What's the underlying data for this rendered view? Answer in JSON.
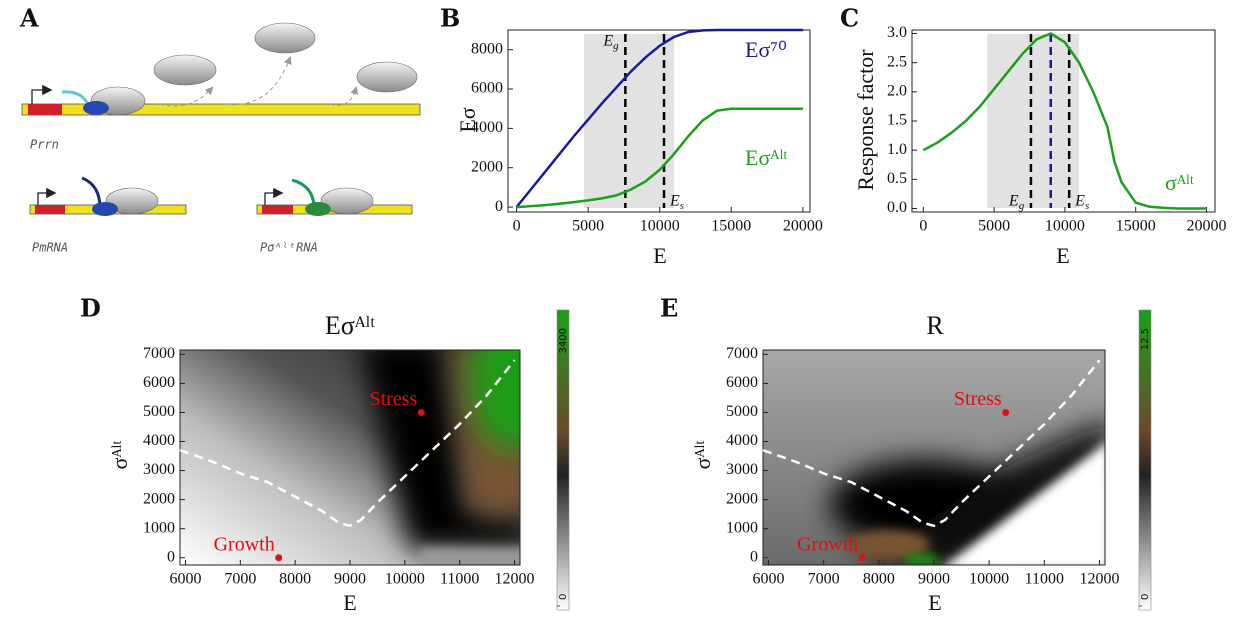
{
  "diagram": {
    "panel": "A",
    "labels": [
      "Prrn",
      "PmRNA",
      "PσᴬˡᵗRNA"
    ]
  },
  "chart_data": [
    {
      "type": "line",
      "panel": "B",
      "x_label": "E",
      "y_label": "Eσ",
      "xlim": [
        -600,
        20500
      ],
      "ylim": [
        -250,
        9000
      ],
      "xticks": [
        0,
        5000,
        10000,
        15000,
        20000
      ],
      "yticks": [
        0,
        2000,
        4000,
        6000,
        8000
      ],
      "shaded_region": [
        4700,
        11000
      ],
      "vlines": [
        {
          "x": 7600,
          "color": "#000000",
          "label": "Eg"
        },
        {
          "x": 10300,
          "color": "#000000",
          "label": "Es"
        }
      ],
      "x": [
        0,
        1000,
        2000,
        3000,
        4000,
        5000,
        6000,
        7000,
        8000,
        9000,
        10000,
        11000,
        12000,
        13000,
        14000,
        15000,
        16000,
        17000,
        18000,
        19000,
        20000
      ],
      "series": [
        {
          "name": "Eσ⁷⁰",
          "color": "#1a1a9a",
          "values": [
            0,
            900,
            1800,
            2700,
            3600,
            4450,
            5300,
            6100,
            6900,
            7600,
            8200,
            8650,
            8900,
            8980,
            9000,
            9000,
            9000,
            9000,
            9000,
            9000,
            9000
          ]
        },
        {
          "name": "Eσᴬˡᵗ",
          "color": "#1aa01a",
          "values": [
            0,
            50,
            100,
            170,
            250,
            340,
            450,
            600,
            900,
            1300,
            1900,
            2700,
            3600,
            4400,
            4900,
            5000,
            5000,
            5000,
            5000,
            5000,
            5000
          ]
        }
      ]
    },
    {
      "type": "line",
      "panel": "C",
      "x_label": "E",
      "y_label": "Response factor",
      "xlim": [
        -800,
        20600
      ],
      "ylim": [
        -0.06,
        3.06
      ],
      "xticks": [
        0,
        5000,
        10000,
        15000,
        20000
      ],
      "yticks": [
        {
          "value": 0,
          "label": "0.0"
        },
        0.5,
        {
          "value": 1,
          "label": "1.0"
        },
        1.5,
        {
          "value": 2,
          "label": "2.0"
        },
        2.5,
        {
          "value": 3,
          "label": "3.0"
        }
      ],
      "shaded_region": [
        4500,
        11000
      ],
      "vlines": [
        {
          "x": 7600,
          "color": "#000000",
          "label": "Eg"
        },
        {
          "x": 9000,
          "color": "#1a1a9a"
        },
        {
          "x": 10300,
          "color": "#000000",
          "label": "Es"
        }
      ],
      "x": [
        0,
        1000,
        2000,
        3000,
        4000,
        5000,
        6000,
        7000,
        8000,
        9000,
        10000,
        11000,
        12000,
        13000,
        13500,
        14000,
        15000,
        16000,
        17000,
        18000,
        20000
      ],
      "series": [
        {
          "name": "σᴬˡᵗ",
          "color": "#1aa01a",
          "values": [
            1.0,
            1.13,
            1.3,
            1.5,
            1.75,
            2.05,
            2.35,
            2.65,
            2.9,
            3.0,
            2.85,
            2.5,
            2.0,
            1.4,
            0.8,
            0.45,
            0.1,
            0.03,
            0.01,
            0,
            0
          ]
        }
      ]
    },
    {
      "type": "heatmap",
      "panel": "D",
      "title": "Eσᴬˡᵗ",
      "x_label": "E",
      "y_label": "σᴬˡᵗ",
      "xlim": [
        5900,
        12100
      ],
      "ylim": [
        -250,
        7150
      ],
      "xticks": [
        6000,
        7000,
        8000,
        9000,
        10000,
        11000,
        12000
      ],
      "yticks": [
        0,
        1000,
        2000,
        3000,
        4000,
        5000,
        6000,
        7000
      ],
      "points": [
        {
          "label": "Stress",
          "x": 10300,
          "y": 5000,
          "color": "#e01010"
        },
        {
          "label": "Growth",
          "x": 7700,
          "y": 0,
          "color": "#e01010"
        }
      ],
      "series": [
        {
          "color": "#ffffff",
          "x": [
            5900,
            6500,
            7000,
            7500,
            8000,
            8500,
            8800,
            9000,
            9200,
            9500,
            10000,
            10500,
            11000,
            11500,
            12000
          ],
          "values": [
            3700,
            3300,
            2900,
            2600,
            2100,
            1600,
            1200,
            1100,
            1300,
            1900,
            2800,
            3700,
            4600,
            5600,
            6800
          ]
        }
      ],
      "colorbar": {
        "lim": [
          0,
          3400
        ],
        "ticks": [
          0,
          3400
        ]
      }
    },
    {
      "type": "heatmap",
      "panel": "E",
      "title": "R",
      "x_label": "E",
      "y_label": "σᴬˡᵗ",
      "xlim": [
        5900,
        12100
      ],
      "ylim": [
        -250,
        7150
      ],
      "xticks": [
        6000,
        7000,
        8000,
        9000,
        10000,
        11000,
        12000
      ],
      "yticks": [
        0,
        1000,
        2000,
        3000,
        4000,
        5000,
        6000,
        7000
      ],
      "points": [
        {
          "label": "Stress",
          "x": 10300,
          "y": 5000,
          "color": "#e01010"
        },
        {
          "label": "Growth",
          "x": 7700,
          "y": 0,
          "color": "#e01010"
        }
      ],
      "series": [
        {
          "color": "#ffffff",
          "x": [
            5900,
            6500,
            7000,
            7500,
            8000,
            8500,
            8800,
            9000,
            9200,
            9500,
            10000,
            10500,
            11000,
            11500,
            12000
          ],
          "values": [
            3700,
            3300,
            2900,
            2600,
            2100,
            1600,
            1200,
            1100,
            1300,
            1900,
            2800,
            3700,
            4600,
            5600,
            6800
          ]
        }
      ],
      "colorbar": {
        "lim": [
          0,
          12.5
        ],
        "ticks": [
          0,
          12.5
        ]
      }
    }
  ]
}
